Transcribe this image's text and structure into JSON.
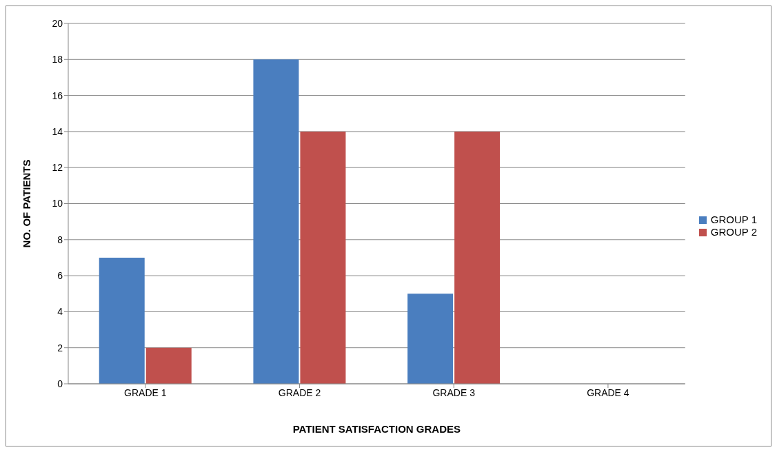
{
  "chart_data": {
    "type": "bar",
    "xlabel": "PATIENT SATISFACTION GRADES",
    "ylabel": "NO. OF PATIENTS",
    "categories": [
      "GRADE 1",
      "GRADE 2",
      "GRADE 3",
      "GRADE 4"
    ],
    "series": [
      {
        "name": "GROUP 1",
        "color": "#4a7ebf",
        "values": [
          7,
          18,
          5,
          0
        ]
      },
      {
        "name": "GROUP 2",
        "color": "#c0504d",
        "values": [
          2,
          14,
          14,
          0
        ]
      }
    ],
    "ylim": [
      0,
      20
    ],
    "yticks": [
      0,
      2,
      4,
      6,
      8,
      10,
      12,
      14,
      16,
      18,
      20
    ],
    "grid": "y",
    "legend": "right"
  }
}
